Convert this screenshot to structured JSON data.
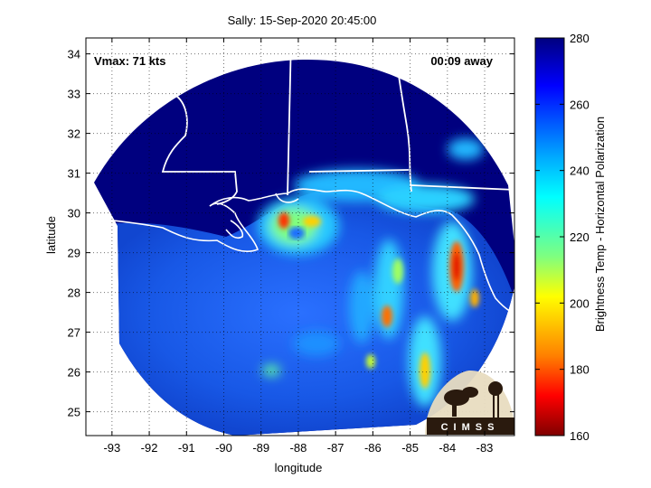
{
  "title": "Sally: 15-Sep-2020 20:45:00",
  "vmax_label": "Vmax: 71 kts",
  "time_label": "00:09 away",
  "x_axis": {
    "label": "longitude",
    "ticks": [
      -93,
      -92,
      -91,
      -90,
      -89,
      -88,
      -87,
      -86,
      -85,
      -84,
      -83
    ],
    "range": [
      -93.7,
      -82.2
    ]
  },
  "y_axis": {
    "label": "latitude",
    "ticks": [
      25,
      26,
      27,
      28,
      29,
      30,
      31,
      32,
      33,
      34
    ],
    "range": [
      24.4,
      34.4
    ]
  },
  "colorbar": {
    "label": "Brightness Temp - Horizontal Polarization",
    "ticks": [
      280,
      260,
      240,
      220,
      200,
      180,
      160
    ],
    "range": [
      160,
      280
    ],
    "colormap": "jet-reversed"
  },
  "logo": {
    "text": "CIMSS"
  },
  "grid": "dotted",
  "colors": {
    "warm_background": "#00007f",
    "ocean": "#1e64f0",
    "coast_lines": "#ffffff"
  },
  "chart_data": {
    "type": "heatmap",
    "swath_center": {
      "lon": -88.0,
      "lat": 29.5
    },
    "storm_center": {
      "lon": -88.1,
      "lat": 29.55
    },
    "features": [
      {
        "name": "eyewall",
        "lon": -88.1,
        "lat": 29.5,
        "min_temp": 190
      },
      {
        "name": "rainband",
        "lon": -84.0,
        "lat": 28.0,
        "min_temp": 185
      },
      {
        "name": "rainband",
        "lon": -85.6,
        "lat": 27.3,
        "min_temp": 190
      },
      {
        "name": "rainband",
        "lon": -84.8,
        "lat": 26.0,
        "min_temp": 205
      }
    ]
  }
}
